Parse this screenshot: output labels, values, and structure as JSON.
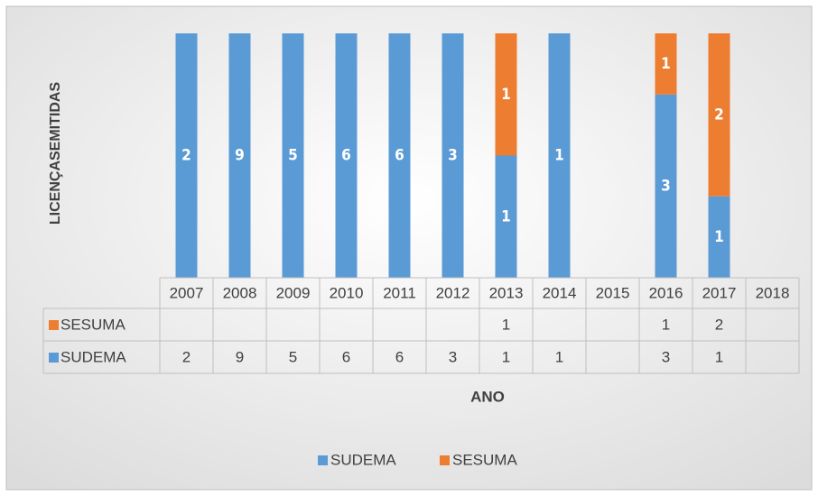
{
  "chart_data": {
    "type": "bar",
    "stacking": "percent",
    "y_label": "LICENÇASEMITIDAS",
    "x_label": "ANO",
    "categories": [
      "2007",
      "2008",
      "2009",
      "2010",
      "2011",
      "2012",
      "2013",
      "2014",
      "2015",
      "2016",
      "2017",
      "2018"
    ],
    "series": [
      {
        "name": "SUDEMA",
        "color": "#5b9bd5",
        "values": [
          2,
          9,
          5,
          6,
          6,
          3,
          1,
          1,
          null,
          3,
          1,
          null
        ]
      },
      {
        "name": "SESUMA",
        "color": "#ed7d31",
        "values": [
          null,
          null,
          null,
          null,
          null,
          null,
          1,
          null,
          null,
          1,
          2,
          null
        ]
      }
    ],
    "data_table": true,
    "legend": "bottom"
  }
}
